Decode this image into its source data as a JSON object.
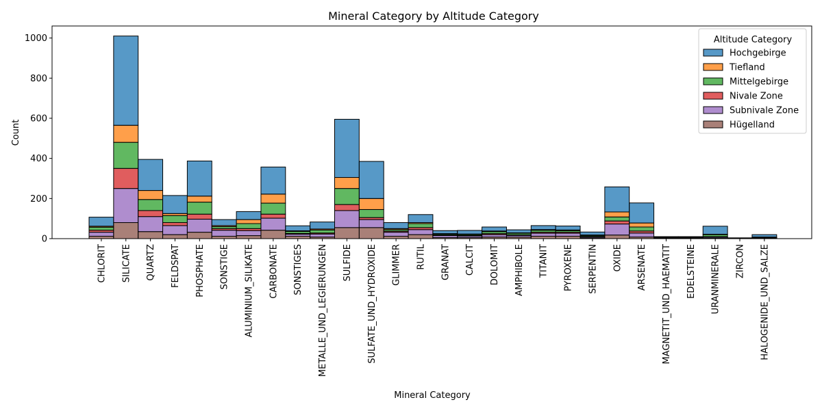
{
  "chart_data": {
    "type": "bar",
    "stacked": true,
    "title": "Mineral Category by Altitude Category",
    "xlabel": "Mineral Category",
    "ylabel": "Count",
    "ylim": [
      0,
      1060
    ],
    "yticks": [
      0,
      200,
      400,
      600,
      800,
      1000
    ],
    "legend": {
      "title": "Altitude Category",
      "placement": "top-right"
    },
    "categories": [
      "CHLORIT",
      "SILICATE",
      "QUARTZ",
      "FELDSPAT",
      "PHOSPHATE",
      "SONSTIGE",
      "ALUMINIUM_SILIKATE",
      "CARBONATE",
      "SONSTIGES",
      "METALLE_UND_LEGIERUNGEN",
      "SULFIDE",
      "SULFATE_UND_HYDROXIDE",
      "GLIMMER",
      "RUTIL",
      "GRANAT",
      "CALCIT",
      "DOLOMIT",
      "AMPHIBOLE",
      "TITANIT",
      "PYROXENE",
      "SERPENTIN",
      "OXIDE",
      "ARSENATE",
      "MAGNETIT_UND_HAEMATIT",
      "EDELSTEINE",
      "URANMINERALE",
      "ZIRCON",
      "HALOGENIDE_UND_SALZE"
    ],
    "stack_order_bottom_to_top": [
      "Hügelland",
      "Subnivale Zone",
      "Nivale Zone",
      "Mittelgebirge",
      "Tiefland",
      "Hochgebirge"
    ],
    "series": [
      {
        "name": "Hochgebirge",
        "color": "#1f77b4",
        "values": [
          45,
          445,
          155,
          90,
          175,
          30,
          40,
          135,
          25,
          35,
          290,
          185,
          30,
          40,
          15,
          18,
          20,
          15,
          20,
          20,
          15,
          125,
          100,
          3,
          3,
          40,
          2,
          12
        ]
      },
      {
        "name": "Tiefland",
        "color": "#ff7f0e",
        "values": [
          5,
          85,
          45,
          10,
          30,
          5,
          20,
          45,
          3,
          5,
          55,
          55,
          5,
          5,
          2,
          2,
          3,
          2,
          3,
          3,
          2,
          25,
          20,
          1,
          1,
          2,
          0,
          1
        ]
      },
      {
        "name": "Mittelgebirge",
        "color": "#2ca02c",
        "values": [
          15,
          130,
          55,
          35,
          60,
          10,
          25,
          55,
          10,
          15,
          80,
          40,
          8,
          20,
          5,
          5,
          10,
          8,
          10,
          8,
          5,
          20,
          20,
          1,
          1,
          10,
          0,
          2
        ]
      },
      {
        "name": "Nivale Zone",
        "color": "#d62728",
        "values": [
          10,
          100,
          30,
          15,
          25,
          8,
          10,
          20,
          4,
          5,
          30,
          10,
          5,
          10,
          3,
          3,
          5,
          3,
          5,
          5,
          2,
          15,
          10,
          1,
          1,
          2,
          0,
          1
        ]
      },
      {
        "name": "Subnivale Zone",
        "color": "#9467bd",
        "values": [
          20,
          170,
          75,
          45,
          65,
          30,
          25,
          60,
          10,
          15,
          85,
          40,
          20,
          25,
          10,
          8,
          12,
          8,
          15,
          15,
          5,
          55,
          20,
          2,
          2,
          5,
          1,
          2
        ]
      },
      {
        "name": "Hügelland",
        "color": "#8c564b",
        "values": [
          12,
          80,
          35,
          20,
          32,
          12,
          15,
          42,
          12,
          8,
          55,
          55,
          12,
          20,
          5,
          5,
          8,
          8,
          12,
          12,
          4,
          18,
          8,
          2,
          2,
          3,
          1,
          2
        ]
      }
    ]
  }
}
